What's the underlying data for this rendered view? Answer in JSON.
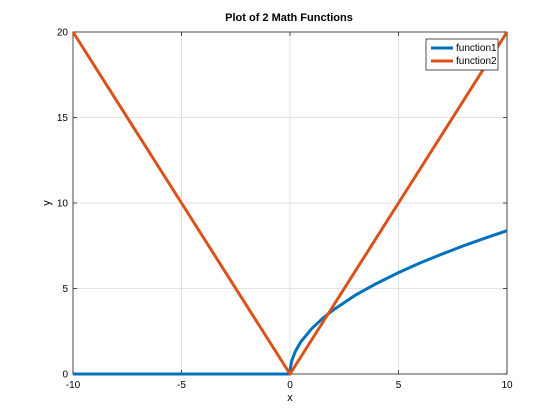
{
  "chart_data": {
    "type": "line",
    "title": "Plot of 2 Math Functions",
    "xlabel": "x",
    "ylabel": "y",
    "xlim": [
      -10,
      10
    ],
    "ylim": [
      0,
      20
    ],
    "xticks": [
      -10,
      -5,
      0,
      5,
      10
    ],
    "yticks": [
      0,
      5,
      10,
      15,
      20
    ],
    "xtick_labels": [
      "-10",
      "-5",
      "0",
      "5",
      "10"
    ],
    "ytick_labels": [
      "0",
      "5",
      "10",
      "15",
      "20"
    ],
    "grid": true,
    "legend_position": "top-right",
    "series": [
      {
        "name": "function1",
        "color": "#0072bd",
        "x": [
          -10,
          -5,
          0,
          0.01,
          0.05,
          0.1,
          0.25,
          0.5,
          1,
          1.5,
          2,
          3,
          4,
          5,
          6,
          7,
          8,
          9,
          10
        ],
        "y": [
          0,
          0,
          0,
          0.26,
          0.59,
          0.84,
          1.33,
          1.88,
          2.65,
          3.25,
          3.75,
          4.6,
          5.3,
          5.93,
          6.5,
          7.01,
          7.5,
          7.95,
          8.38
        ]
      },
      {
        "name": "function2",
        "color": "#d95319",
        "x": [
          -10,
          -5,
          0,
          5,
          10
        ],
        "y": [
          20,
          10,
          0,
          10,
          20
        ]
      }
    ]
  }
}
